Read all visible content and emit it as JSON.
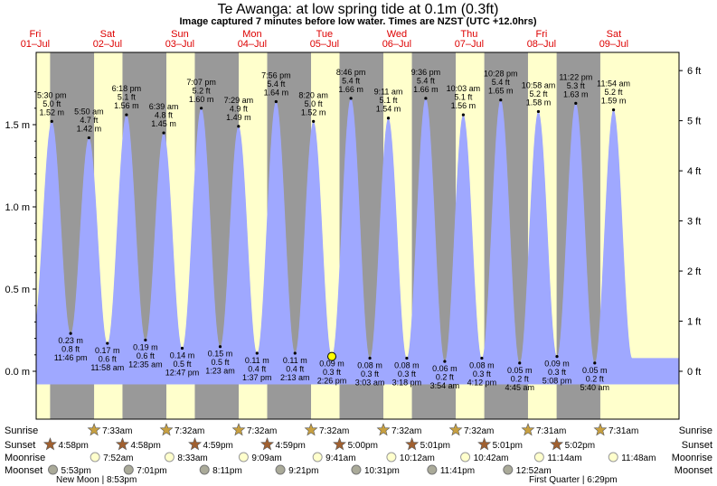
{
  "title": "Te Awanga: at low  spring tide at 0.1m (0.3ft)",
  "subtitle": "Image captured 7 minutes before low water. Times are NZST (UTC +12.0hrs)",
  "days": [
    {
      "dow": "Fri",
      "date": "01–Jul"
    },
    {
      "dow": "Sat",
      "date": "02–Jul"
    },
    {
      "dow": "Sun",
      "date": "03–Jul"
    },
    {
      "dow": "Mon",
      "date": "04–Jul"
    },
    {
      "dow": "Tue",
      "date": "05–Jul"
    },
    {
      "dow": "Wed",
      "date": "06–Jul"
    },
    {
      "dow": "Thu",
      "date": "07–Jul"
    },
    {
      "dow": "Fri",
      "date": "08–Jul"
    },
    {
      "dow": "Sat",
      "date": "09–Jul"
    }
  ],
  "row_labels": {
    "sunrise": "Sunrise",
    "sunset": "Sunset",
    "moonrise": "Moonrise",
    "moonset": "Moonset"
  },
  "moon_phases": [
    "New Moon | 8:53pm",
    "First Quarter | 6:29pm"
  ],
  "astro": {
    "sunrise": [
      "7:33am",
      "7:32am",
      "7:32am",
      "7:32am",
      "7:32am",
      "7:32am",
      "7:31am",
      "7:31am"
    ],
    "sunset": [
      "4:58pm",
      "4:58pm",
      "4:59pm",
      "4:59pm",
      "5:00pm",
      "5:01pm",
      "5:01pm",
      "5:02pm"
    ],
    "moonrise": [
      "7:52am",
      "8:33am",
      "9:09am",
      "9:41am",
      "10:12am",
      "10:42am",
      "11:14am",
      "11:48am"
    ],
    "moonset": [
      "5:53pm",
      "7:01pm",
      "8:11pm",
      "9:21pm",
      "10:31pm",
      "11:41pm",
      "12:52am"
    ]
  },
  "colors": {
    "tide_fill": "#9fa8ff",
    "day_band": "#ffffcc",
    "night_band": "#999999",
    "day_label": "#dd0000",
    "sun_star": "#c8a040",
    "sunset_star": "#a06030",
    "moonrise_disc": "#ffffcc",
    "moonset_disc": "#aaaa99"
  },
  "chart_data": {
    "type": "area",
    "title": "Te Awanga: at low  spring tide at 0.1m (0.3ft)",
    "ylabel_left_unit": "m",
    "ylabel_right_unit": "ft",
    "y_ticks_m": [
      "1.5 m",
      "1.0 m",
      "0.5 m",
      "0.0 m"
    ],
    "y_ticks_ft": [
      "6 ft",
      "5 ft",
      "4 ft",
      "3 ft",
      "2 ft",
      "1 ft",
      "0 ft"
    ],
    "ylim_m": [
      -0.1,
      1.85
    ],
    "current_marker": {
      "time": "2:26 pm",
      "height_m": 0.09
    },
    "tides": [
      {
        "type": "high",
        "time": "5:30 pm",
        "m": 1.52,
        "ft": 5.0
      },
      {
        "type": "low",
        "time": "11:46 pm",
        "m": 0.23,
        "ft": 0.8
      },
      {
        "type": "high",
        "time": "5:50 am",
        "m": 1.42,
        "ft": 4.7
      },
      {
        "type": "low",
        "time": "11:58 am",
        "m": 0.17,
        "ft": 0.6
      },
      {
        "type": "high",
        "time": "6:18 pm",
        "m": 1.56,
        "ft": 5.1
      },
      {
        "type": "low",
        "time": "12:35 am",
        "m": 0.19,
        "ft": 0.6
      },
      {
        "type": "high",
        "time": "6:39 am",
        "m": 1.45,
        "ft": 4.8
      },
      {
        "type": "low",
        "time": "12:47 pm",
        "m": 0.14,
        "ft": 0.5
      },
      {
        "type": "high",
        "time": "7:07 pm",
        "m": 1.6,
        "ft": 5.2
      },
      {
        "type": "low",
        "time": "1:23 am",
        "m": 0.15,
        "ft": 0.5
      },
      {
        "type": "high",
        "time": "7:29 am",
        "m": 1.49,
        "ft": 4.9
      },
      {
        "type": "low",
        "time": "1:37 pm",
        "m": 0.11,
        "ft": 0.4
      },
      {
        "type": "high",
        "time": "7:56 pm",
        "m": 1.64,
        "ft": 5.4
      },
      {
        "type": "low",
        "time": "2:13 am",
        "m": 0.11,
        "ft": 0.4
      },
      {
        "type": "high",
        "time": "8:20 am",
        "m": 1.52,
        "ft": 5.0
      },
      {
        "type": "low",
        "time": "2:26 pm",
        "m": 0.09,
        "ft": 0.3
      },
      {
        "type": "high",
        "time": "8:46 pm",
        "m": 1.66,
        "ft": 5.4
      },
      {
        "type": "low",
        "time": "3:03 am",
        "m": 0.08,
        "ft": 0.3
      },
      {
        "type": "high",
        "time": "9:11 am",
        "m": 1.54,
        "ft": 5.1
      },
      {
        "type": "low",
        "time": "3:18 pm",
        "m": 0.08,
        "ft": 0.3
      },
      {
        "type": "high",
        "time": "9:36 pm",
        "m": 1.66,
        "ft": 5.4
      },
      {
        "type": "low",
        "time": "3:54 am",
        "m": 0.06,
        "ft": 0.2
      },
      {
        "type": "high",
        "time": "10:03 am",
        "m": 1.56,
        "ft": 5.1
      },
      {
        "type": "low",
        "time": "4:12 pm",
        "m": 0.08,
        "ft": 0.3
      },
      {
        "type": "high",
        "time": "10:28 pm",
        "m": 1.65,
        "ft": 5.4
      },
      {
        "type": "low",
        "time": "4:45 am",
        "m": 0.05,
        "ft": 0.2
      },
      {
        "type": "high",
        "time": "10:58 am",
        "m": 1.58,
        "ft": 5.2
      },
      {
        "type": "low",
        "time": "5:08 pm",
        "m": 0.09,
        "ft": 0.3
      },
      {
        "type": "high",
        "time": "11:22 pm",
        "m": 1.63,
        "ft": 5.3
      },
      {
        "type": "low",
        "time": "5:40 am",
        "m": 0.05,
        "ft": 0.2
      },
      {
        "type": "high",
        "time": "11:54 am",
        "m": 1.59,
        "ft": 5.2
      }
    ]
  }
}
